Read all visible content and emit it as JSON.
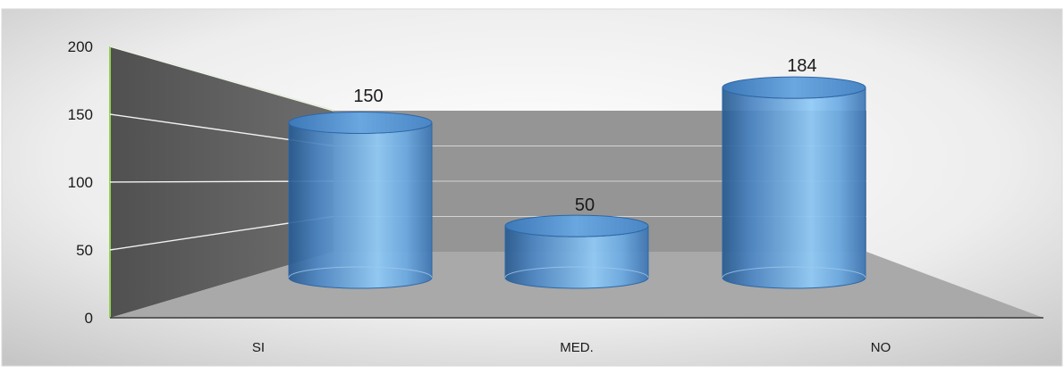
{
  "chart_data": {
    "type": "bar",
    "style": "3d-cylinder",
    "categories": [
      "SI",
      "MED.",
      "NO"
    ],
    "series": [
      {
        "values": [
          150,
          50,
          184
        ]
      }
    ],
    "ylim": [
      0,
      200
    ],
    "yticks": [
      0,
      50,
      100,
      150,
      200
    ],
    "grid": true,
    "legend": "none",
    "colors": {
      "bar": "#5b9bd5",
      "back_wall": "#969696",
      "side_wall": "#595959",
      "floor": "#a6a6a6",
      "wall_edge": "#92d050"
    }
  }
}
